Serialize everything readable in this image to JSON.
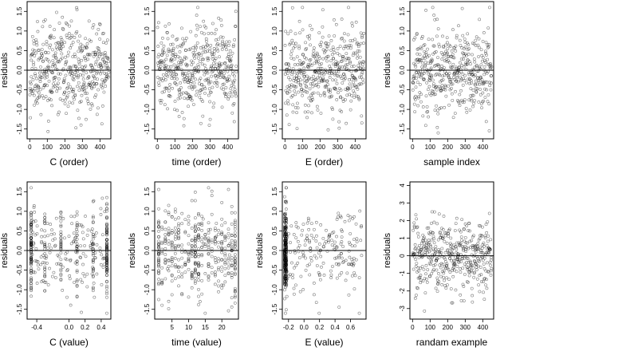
{
  "chart_data": [
    {
      "type": "scatter",
      "xlabel": "C (order)",
      "ylabel": "residuals",
      "xlim": [
        -15,
        462
      ],
      "ylim": [
        -1.75,
        1.75
      ],
      "xticks": [
        0,
        100,
        200,
        300,
        400
      ],
      "yticks": [
        -1.5,
        -1.0,
        -0.5,
        0.0,
        0.5,
        1.0,
        1.5
      ],
      "ytick_labels": [
        "-1.5",
        "-1.0",
        "-0.5",
        "0.0",
        "0.5",
        "1.0",
        "1.5"
      ],
      "reference_line_y": 0,
      "points": {
        "n": 450,
        "x_kind": "index",
        "x_range": [
          1,
          450
        ],
        "y_spread": 0.55,
        "y_min": -1.6,
        "y_max": 1.6,
        "seed": 11
      }
    },
    {
      "type": "scatter",
      "xlabel": "time (order)",
      "ylabel": "residuals",
      "xlim": [
        -15,
        462
      ],
      "ylim": [
        -1.75,
        1.75
      ],
      "xticks": [
        0,
        100,
        200,
        300,
        400
      ],
      "yticks": [
        -1.5,
        -1.0,
        -0.5,
        0.0,
        0.5,
        1.0,
        1.5
      ],
      "ytick_labels": [
        "-1.5",
        "-1.0",
        "-0.5",
        "0.0",
        "0.5",
        "1.0",
        "1.5"
      ],
      "reference_line_y": 0,
      "points": {
        "n": 450,
        "x_kind": "index",
        "x_range": [
          1,
          450
        ],
        "y_spread": 0.55,
        "y_min": -1.6,
        "y_max": 1.6,
        "seed": 23
      }
    },
    {
      "type": "scatter",
      "xlabel": "E (order)",
      "ylabel": "residuals",
      "xlim": [
        -15,
        462
      ],
      "ylim": [
        -1.75,
        1.75
      ],
      "xticks": [
        0,
        100,
        200,
        300,
        400
      ],
      "yticks": [
        -1.5,
        -1.0,
        -0.5,
        0.0,
        0.5,
        1.0,
        1.5
      ],
      "ytick_labels": [
        "-1.5",
        "-1.0",
        "-0.5",
        "0.0",
        "0.5",
        "1.0",
        "1.5"
      ],
      "reference_line_y": 0,
      "points": {
        "n": 450,
        "x_kind": "index",
        "x_range": [
          1,
          450
        ],
        "y_spread": 0.55,
        "y_min": -1.6,
        "y_max": 1.6,
        "seed": 37
      }
    },
    {
      "type": "scatter",
      "xlabel": "sample index",
      "ylabel": "residuals",
      "xlim": [
        -15,
        462
      ],
      "ylim": [
        -1.75,
        1.75
      ],
      "xticks": [
        0,
        100,
        200,
        300,
        400
      ],
      "yticks": [
        -1.5,
        -1.0,
        -0.5,
        0.0,
        0.5,
        1.0,
        1.5
      ],
      "ytick_labels": [
        "-1.5",
        "-1.0",
        "-0.5",
        "0.0",
        "0.5",
        "1.0",
        "1.5"
      ],
      "reference_line_y": 0,
      "points": {
        "n": 450,
        "x_kind": "index",
        "x_range": [
          1,
          450
        ],
        "y_spread": 0.55,
        "y_min": -1.6,
        "y_max": 1.6,
        "seed": 41
      }
    },
    {
      "type": "scatter",
      "xlabel": "C (value)",
      "ylabel": "residuals",
      "xlim": [
        -0.52,
        0.52
      ],
      "ylim": [
        -1.75,
        1.75
      ],
      "xticks": [
        -0.4,
        0.0,
        0.2,
        0.4
      ],
      "xtick_labels": [
        "-0.4",
        "0.0",
        "0.2",
        "0.4"
      ],
      "yticks": [
        -1.5,
        -1.0,
        -0.5,
        0.0,
        0.5,
        1.0,
        1.5
      ],
      "ytick_labels": [
        "-1.5",
        "-1.0",
        "-0.5",
        "0.0",
        "0.5",
        "1.0",
        "1.5"
      ],
      "reference_line_y": 0,
      "points": {
        "n": 450,
        "x_kind": "clustered",
        "clusters": [
          -0.47,
          -0.3,
          -0.1,
          0.1,
          0.3,
          0.47
        ],
        "cluster_weights": [
          3,
          1,
          1,
          1,
          1,
          3
        ],
        "fill_frac": 0.35,
        "y_spread": 0.55,
        "y_min": -1.6,
        "y_max": 1.6,
        "seed": 53
      }
    },
    {
      "type": "scatter",
      "xlabel": "time (value)",
      "ylabel": "residuals",
      "xlim": [
        -0.2,
        25
      ],
      "ylim": [
        -1.75,
        1.75
      ],
      "xticks": [
        5,
        10,
        15,
        20
      ],
      "xtick_labels": [
        "5",
        "10",
        "15",
        "20"
      ],
      "yticks": [
        -1.5,
        -1.0,
        -0.5,
        0.0,
        0.5,
        1.0,
        1.5
      ],
      "ytick_labels": [
        "-1.5",
        "-1.0",
        "-0.5",
        "0.0",
        "0.5",
        "1.0",
        "1.5"
      ],
      "reference_line_y": 0,
      "points": {
        "n": 450,
        "x_kind": "clustered",
        "clusters": [
          1,
          2,
          3,
          4,
          5,
          6,
          7,
          8,
          9,
          10,
          11,
          12,
          13,
          14,
          15,
          16,
          17,
          18,
          19,
          20,
          21,
          22,
          23,
          24
        ],
        "cluster_weights": [
          2,
          1,
          1,
          1,
          1,
          1,
          1,
          1,
          1,
          1,
          1,
          2,
          1,
          1,
          1,
          1,
          1,
          1,
          1,
          1,
          1,
          1,
          1,
          2
        ],
        "fill_frac": 0.05,
        "y_spread": 0.55,
        "y_min": -1.6,
        "y_max": 1.6,
        "seed": 67
      }
    },
    {
      "type": "scatter",
      "xlabel": "E (value)",
      "ylabel": "residuals",
      "xlim": [
        -0.28,
        0.8
      ],
      "ylim": [
        -1.75,
        1.75
      ],
      "xticks": [
        -0.2,
        0.0,
        0.2,
        0.4,
        0.6
      ],
      "xtick_labels": [
        "-0.2",
        "0.0",
        "0.2",
        "0.4",
        "0.6"
      ],
      "yticks": [
        -1.5,
        -1.0,
        -0.5,
        0.0,
        0.5,
        1.0,
        1.5
      ],
      "ytick_labels": [
        "-1.5",
        "-1.0",
        "-0.5",
        "0.0",
        "0.5",
        "1.0",
        "1.5"
      ],
      "reference_line_y": 0,
      "points": {
        "n": 450,
        "x_kind": "clustered",
        "clusters": [
          -0.25,
          -0.24,
          -0.23
        ],
        "cluster_weights": [
          2,
          2,
          2
        ],
        "fill_frac": 0.45,
        "y_spread": 0.55,
        "y_min": -1.6,
        "y_max": 1.6,
        "seed": 71
      }
    },
    {
      "type": "scatter",
      "xlabel": "randam example",
      "ylabel": "residuals",
      "xlim": [
        -15,
        462
      ],
      "ylim": [
        -3.6,
        4.2
      ],
      "xticks": [
        0,
        100,
        200,
        300,
        400
      ],
      "yticks": [
        -3,
        -2,
        -1,
        0,
        1,
        2,
        3,
        4
      ],
      "ytick_labels": [
        "-3",
        "-2",
        "-1",
        "0",
        "1",
        "2",
        "3",
        "4"
      ],
      "reference_line_y": 0,
      "points": {
        "n": 450,
        "x_kind": "index",
        "x_range": [
          1,
          450
        ],
        "y_spread": 1.0,
        "y_min": -3.2,
        "y_max": 3.8,
        "seed": 89
      }
    }
  ]
}
